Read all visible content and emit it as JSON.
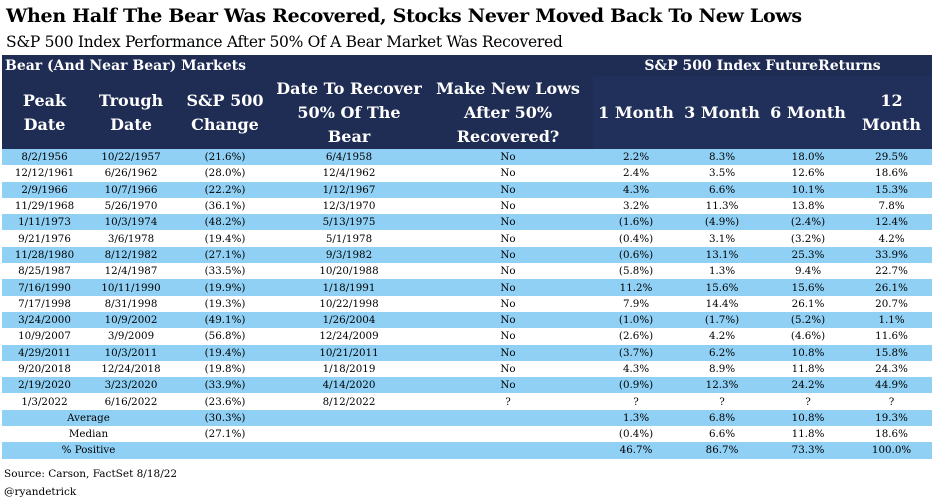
{
  "title": "When Half The Bear Was Recovered, Stocks Never Moved Back To New Lows",
  "subtitle": "S&P 500 Index Performance After 50% Of A Bear Market Was Recovered",
  "group_left": "Bear (And Near Bear) Markets",
  "group_right": "S&P 500 Index FutureReturns",
  "columns": {
    "peak": "Peak Date",
    "trough": "Trough Date",
    "change": "S&P 500 Change",
    "recover": "Date To Recover 50% Of The Bear",
    "newlows": "Make New Lows After 50% Recovered?",
    "m1": "1 Month",
    "m3": "3 Month",
    "m6": "6 Month",
    "m12": "12 Month"
  },
  "rows": [
    {
      "peak": "8/2/1956",
      "trough": "10/22/1957",
      "change": "(21.6%)",
      "recover": "6/4/1958",
      "newlows": "No",
      "m1": "2.2%",
      "m3": "8.3%",
      "m6": "18.0%",
      "m12": "29.5%"
    },
    {
      "peak": "12/12/1961",
      "trough": "6/26/1962",
      "change": "(28.0%)",
      "recover": "12/4/1962",
      "newlows": "No",
      "m1": "2.4%",
      "m3": "3.5%",
      "m6": "12.6%",
      "m12": "18.6%"
    },
    {
      "peak": "2/9/1966",
      "trough": "10/7/1966",
      "change": "(22.2%)",
      "recover": "1/12/1967",
      "newlows": "No",
      "m1": "4.3%",
      "m3": "6.6%",
      "m6": "10.1%",
      "m12": "15.3%"
    },
    {
      "peak": "11/29/1968",
      "trough": "5/26/1970",
      "change": "(36.1%)",
      "recover": "12/3/1970",
      "newlows": "No",
      "m1": "3.2%",
      "m3": "11.3%",
      "m6": "13.8%",
      "m12": "7.8%"
    },
    {
      "peak": "1/11/1973",
      "trough": "10/3/1974",
      "change": "(48.2%)",
      "recover": "5/13/1975",
      "newlows": "No",
      "m1": "(1.6%)",
      "m3": "(4.9%)",
      "m6": "(2.4%)",
      "m12": "12.4%"
    },
    {
      "peak": "9/21/1976",
      "trough": "3/6/1978",
      "change": "(19.4%)",
      "recover": "5/1/1978",
      "newlows": "No",
      "m1": "(0.4%)",
      "m3": "3.1%",
      "m6": "(3.2%)",
      "m12": "4.2%"
    },
    {
      "peak": "11/28/1980",
      "trough": "8/12/1982",
      "change": "(27.1%)",
      "recover": "9/3/1982",
      "newlows": "No",
      "m1": "(0.6%)",
      "m3": "13.1%",
      "m6": "25.3%",
      "m12": "33.9%"
    },
    {
      "peak": "8/25/1987",
      "trough": "12/4/1987",
      "change": "(33.5%)",
      "recover": "10/20/1988",
      "newlows": "No",
      "m1": "(5.8%)",
      "m3": "1.3%",
      "m6": "9.4%",
      "m12": "22.7%"
    },
    {
      "peak": "7/16/1990",
      "trough": "10/11/1990",
      "change": "(19.9%)",
      "recover": "1/18/1991",
      "newlows": "No",
      "m1": "11.2%",
      "m3": "15.6%",
      "m6": "15.6%",
      "m12": "26.1%"
    },
    {
      "peak": "7/17/1998",
      "trough": "8/31/1998",
      "change": "(19.3%)",
      "recover": "10/22/1998",
      "newlows": "No",
      "m1": "7.9%",
      "m3": "14.4%",
      "m6": "26.1%",
      "m12": "20.7%"
    },
    {
      "peak": "3/24/2000",
      "trough": "10/9/2002",
      "change": "(49.1%)",
      "recover": "1/26/2004",
      "newlows": "No",
      "m1": "(1.0%)",
      "m3": "(1.7%)",
      "m6": "(5.2%)",
      "m12": "1.1%"
    },
    {
      "peak": "10/9/2007",
      "trough": "3/9/2009",
      "change": "(56.8%)",
      "recover": "12/24/2009",
      "newlows": "No",
      "m1": "(2.6%)",
      "m3": "4.2%",
      "m6": "(4.6%)",
      "m12": "11.6%"
    },
    {
      "peak": "4/29/2011",
      "trough": "10/3/2011",
      "change": "(19.4%)",
      "recover": "10/21/2011",
      "newlows": "No",
      "m1": "(3.7%)",
      "m3": "6.2%",
      "m6": "10.8%",
      "m12": "15.8%"
    },
    {
      "peak": "9/20/2018",
      "trough": "12/24/2018",
      "change": "(19.8%)",
      "recover": "1/18/2019",
      "newlows": "No",
      "m1": "4.3%",
      "m3": "8.9%",
      "m6": "11.8%",
      "m12": "24.3%"
    },
    {
      "peak": "2/19/2020",
      "trough": "3/23/2020",
      "change": "(33.9%)",
      "recover": "4/14/2020",
      "newlows": "No",
      "m1": "(0.9%)",
      "m3": "12.3%",
      "m6": "24.2%",
      "m12": "44.9%"
    },
    {
      "peak": "1/3/2022",
      "trough": "6/16/2022",
      "change": "(23.6%)",
      "recover": "8/12/2022",
      "newlows": "?",
      "m1": "?",
      "m3": "?",
      "m6": "?",
      "m12": "?"
    }
  ],
  "summary": [
    {
      "label": "Average",
      "change": "(30.3%)",
      "m1": "1.3%",
      "m3": "6.8%",
      "m6": "10.8%",
      "m12": "19.3%"
    },
    {
      "label": "Median",
      "change": "(27.1%)",
      "m1": "(0.4%)",
      "m3": "6.6%",
      "m6": "11.8%",
      "m12": "18.6%"
    },
    {
      "label": "% Positive",
      "change": "",
      "m1": "46.7%",
      "m3": "86.7%",
      "m6": "73.3%",
      "m12": "100.0%"
    }
  ],
  "source": "Source: Carson, FactSet 8/18/22",
  "handle": "@ryandetrick",
  "colors": {
    "header_bg": "#1f2d54",
    "row_blue": "#8fd0f4",
    "row_white": "#ffffff"
  }
}
